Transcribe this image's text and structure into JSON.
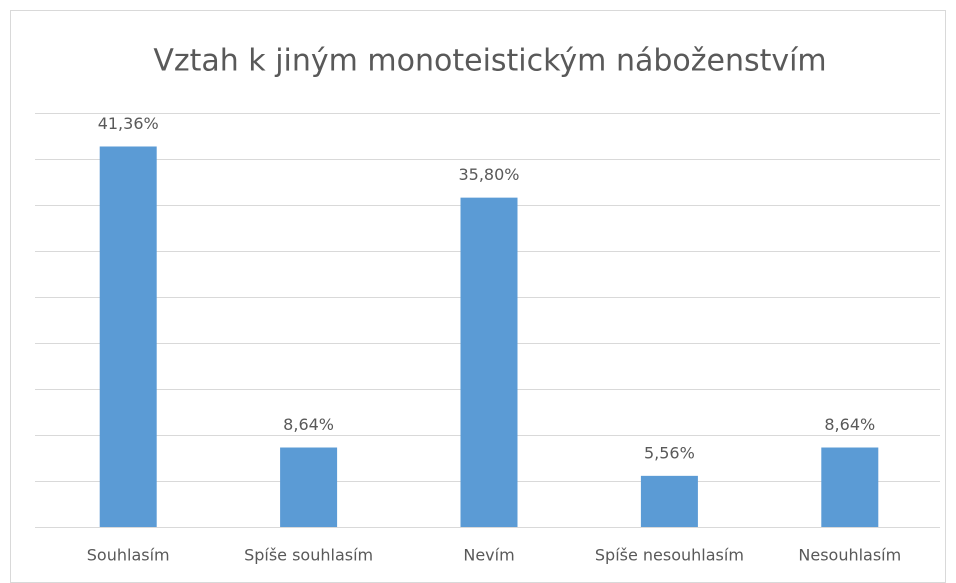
{
  "chart_data": {
    "type": "bar",
    "title": "Vztah k jiným monoteistickým náboženstvím",
    "categories": [
      "Souhlasím",
      "Spíše souhlasím",
      "Nevím",
      "Spíše nesouhlasím",
      "Nesouhlasím"
    ],
    "values": [
      41.36,
      8.64,
      35.8,
      5.56,
      8.64
    ],
    "value_labels": [
      "41,36%",
      "8,64%",
      "35,80%",
      "5,56%",
      "8,64%"
    ],
    "color": "#5b9bd5",
    "ylim": [
      0,
      45
    ],
    "yticks": [
      0,
      5,
      10,
      15,
      20,
      25,
      30,
      35,
      40,
      45
    ],
    "grid": true
  }
}
